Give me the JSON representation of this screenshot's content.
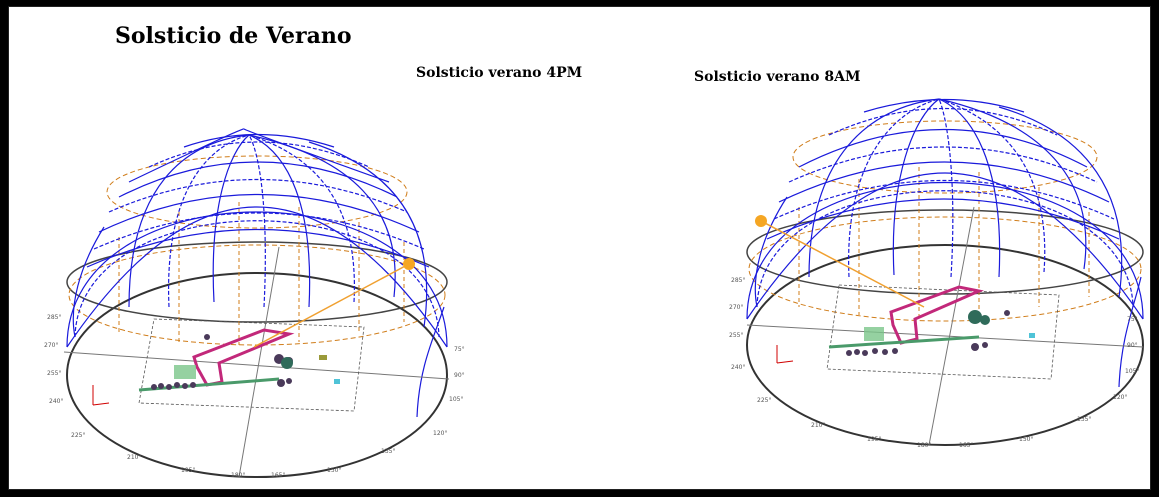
{
  "title": "Solsticio de Verano",
  "panels": [
    {
      "id": "4pm",
      "label": "Solsticio verano 4PM",
      "sun_side": "right",
      "ticks": [
        "285°",
        "270°",
        "255°",
        "240°",
        "225°",
        "210°",
        "195°",
        "180°",
        "165°",
        "150°",
        "135°",
        "120°",
        "105°",
        "90°",
        "75°"
      ]
    },
    {
      "id": "8am",
      "label": "Solsticio verano 8AM",
      "sun_side": "left",
      "ticks": [
        "285°",
        "270°",
        "255°",
        "240°",
        "225°",
        "210°",
        "195°",
        "180°",
        "165°",
        "150°",
        "135°",
        "120°",
        "105°",
        "90°",
        "75°"
      ]
    }
  ],
  "colors": {
    "dome_grid": "#1a1adb",
    "sun_path": "#e08a1e",
    "sun": "#f5a623",
    "building_outline": "#c2287a",
    "ground_ellipse": "#333333",
    "axis_x": "#d00000",
    "axis_y": "#d00000"
  }
}
